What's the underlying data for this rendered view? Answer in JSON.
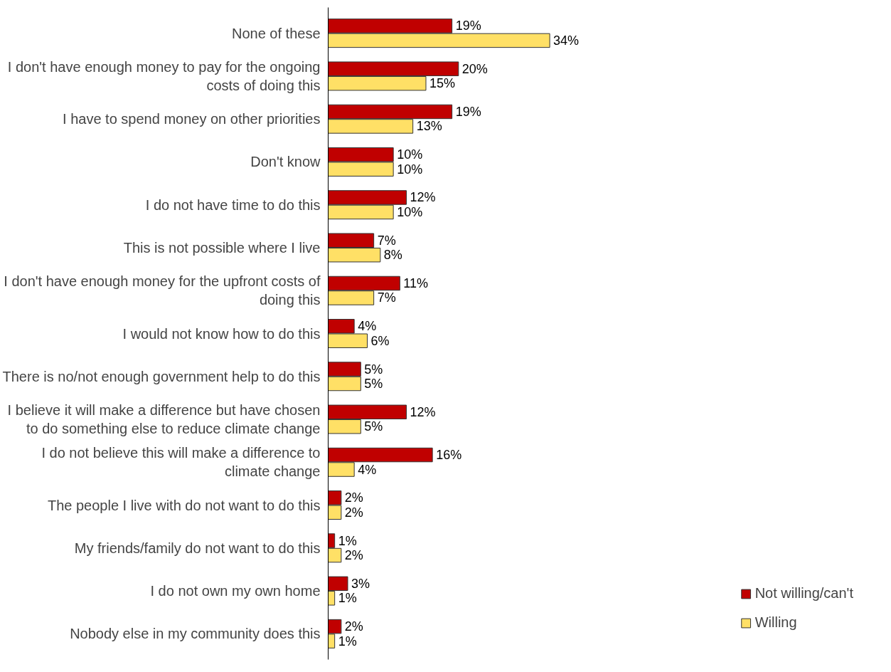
{
  "chart_data": {
    "type": "bar",
    "orientation": "horizontal",
    "grid": false,
    "legend": "bottom right",
    "categories": [
      "None of these",
      "I don't have enough money to pay for the ongoing costs of doing this",
      "I have to spend money on other priorities",
      "Don't know",
      "I do not have time to do this",
      "This is not possible where I live",
      "I don't have enough money for the upfront costs of doing this",
      "I would not know how to do this",
      "There is no/not enough government help to do this",
      "I believe it will make a difference but have chosen to do something else to reduce climate change",
      "I do not believe this will make a difference to climate change",
      "The people I live with do not want to do this",
      "My friends/family do not want to do this",
      "I do not own my own home",
      "Nobody else in my community does this"
    ],
    "series": [
      {
        "name": "Not willing/can't",
        "color": "#c00000",
        "values": [
          19,
          20,
          19,
          10,
          12,
          7,
          11,
          4,
          5,
          12,
          16,
          2,
          1,
          3,
          2
        ],
        "value_labels": [
          "19%",
          "20%",
          "19%",
          "10%",
          "12%",
          "7%",
          "11%",
          "4%",
          "5%",
          "12%",
          "16%",
          "2%",
          "1%",
          "3%",
          "2%"
        ]
      },
      {
        "name": "Willing",
        "color": "#ffe066",
        "values": [
          34,
          15,
          13,
          10,
          10,
          8,
          7,
          6,
          5,
          5,
          4,
          2,
          2,
          1,
          1
        ],
        "value_labels": [
          "34%",
          "15%",
          "13%",
          "10%",
          "10%",
          "8%",
          "7%",
          "6%",
          "5%",
          "5%",
          "4%",
          "2%",
          "2%",
          "1%",
          "1%"
        ]
      }
    ]
  }
}
